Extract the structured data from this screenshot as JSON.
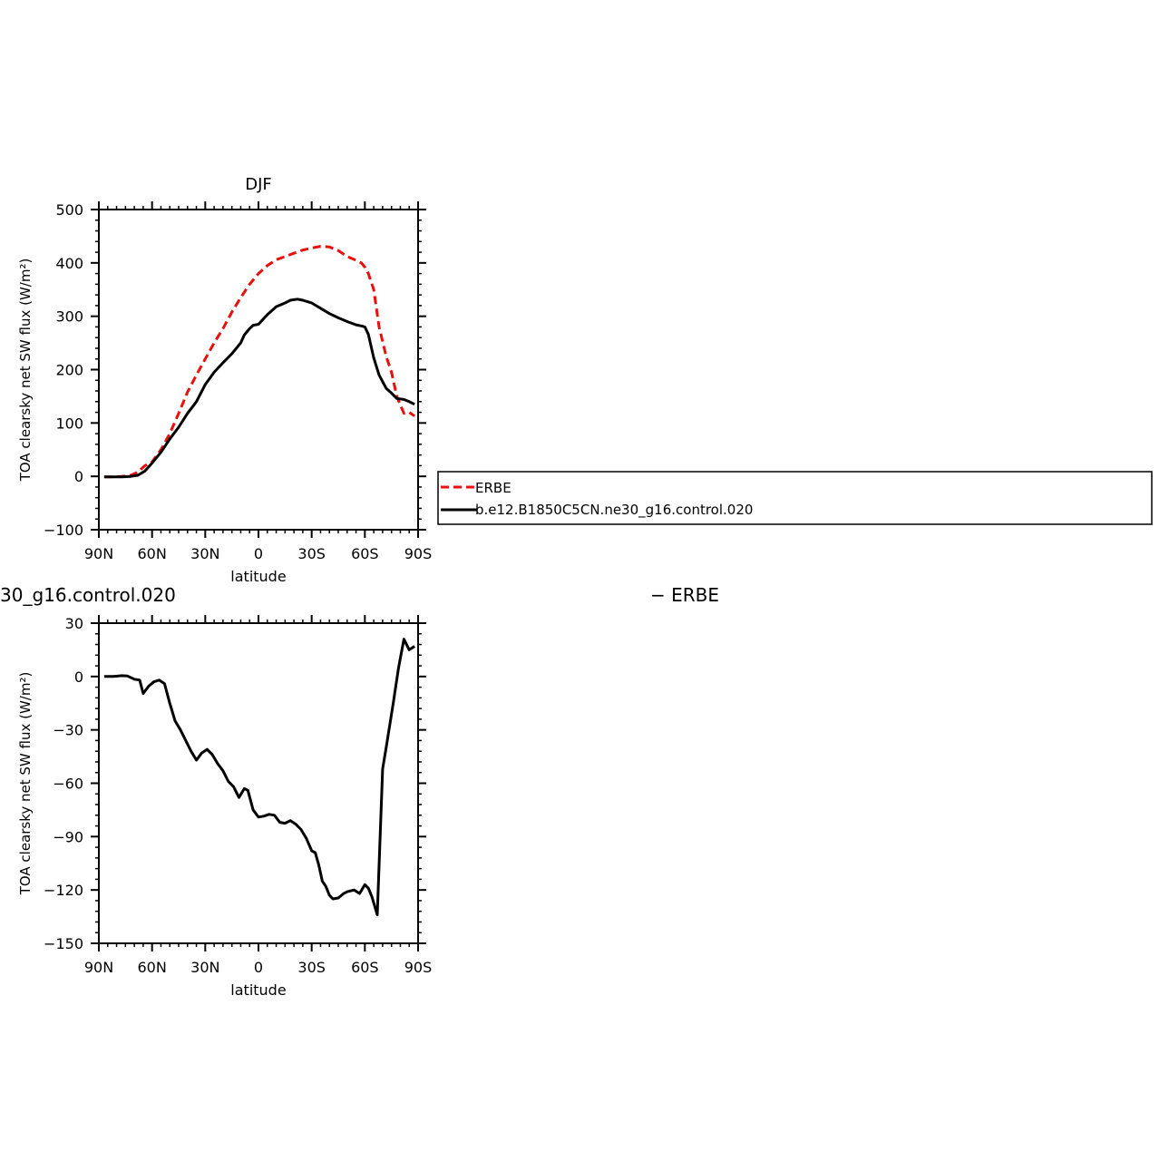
{
  "chart_data": [
    {
      "type": "line",
      "title": "DJF",
      "xlabel": "latitude",
      "ylabel": "TOA clearsky net SW flux (W/m²)",
      "xlim": [
        -90,
        90
      ],
      "ylim": [
        -100,
        500
      ],
      "x_ticks": [
        -90,
        -60,
        -30,
        0,
        30,
        60,
        90
      ],
      "x_tick_labels": [
        "90N",
        "60N",
        "30N",
        "0",
        "30S",
        "60S",
        "90S"
      ],
      "y_ticks": [
        -100,
        0,
        100,
        200,
        300,
        400,
        500
      ],
      "y_tick_labels": [
        "−100",
        "0",
        "100",
        "200",
        "300",
        "400",
        "500"
      ],
      "grid": false,
      "legend_placement": "right",
      "series": [
        {
          "name": "ERBE",
          "color": "#e8100a",
          "dash": "dashed",
          "x": [
            -87,
            -82,
            -77,
            -72,
            -68,
            -64,
            -60,
            -55,
            -50,
            -45,
            -40,
            -35,
            -30,
            -25,
            -20,
            -15,
            -10,
            -5,
            0,
            5,
            10,
            15,
            20,
            25,
            30,
            35,
            40,
            45,
            50,
            55,
            58,
            60,
            62,
            65,
            68,
            72,
            75,
            78,
            82,
            85,
            88
          ],
          "y": [
            -1,
            -1,
            0,
            2,
            8,
            20,
            27,
            50,
            80,
            118,
            158,
            190,
            220,
            250,
            277,
            308,
            335,
            360,
            380,
            395,
            406,
            412,
            418,
            424,
            428,
            431,
            430,
            423,
            412,
            405,
            400,
            392,
            380,
            350,
            280,
            225,
            195,
            150,
            118,
            120,
            113
          ]
        },
        {
          "name": "b.e12.B1850C5CN.ne30_g16.control.020",
          "color": "#000000",
          "dash": "solid",
          "x": [
            -87,
            -82,
            -77,
            -72,
            -68,
            -64,
            -60,
            -55,
            -50,
            -45,
            -40,
            -35,
            -30,
            -25,
            -20,
            -15,
            -10,
            -8,
            -5,
            -3,
            0,
            5,
            10,
            15,
            18,
            22,
            25,
            28,
            30,
            33,
            35,
            40,
            45,
            50,
            55,
            58,
            60,
            62,
            65,
            68,
            72,
            75,
            78,
            82,
            85,
            88
          ],
          "y": [
            -1,
            -1,
            -1,
            0,
            2,
            10,
            25,
            45,
            70,
            92,
            118,
            140,
            172,
            195,
            213,
            230,
            250,
            265,
            277,
            283,
            285,
            303,
            318,
            325,
            330,
            332,
            330,
            327,
            325,
            319,
            315,
            305,
            297,
            290,
            284,
            282,
            280,
            266,
            222,
            190,
            165,
            156,
            146,
            144,
            140,
            135
          ]
        }
      ]
    },
    {
      "type": "line",
      "title_left": "30_g16.control.020",
      "title_right": "− ERBE",
      "xlabel": "latitude",
      "ylabel": "TOA clearsky net SW flux (W/m²)",
      "xlim": [
        -90,
        90
      ],
      "ylim": [
        -150,
        30
      ],
      "x_ticks": [
        -90,
        -60,
        -30,
        0,
        30,
        60,
        90
      ],
      "x_tick_labels": [
        "90N",
        "60N",
        "30N",
        "0",
        "30S",
        "60S",
        "90S"
      ],
      "y_ticks": [
        -150,
        -120,
        -90,
        -60,
        -30,
        0,
        30
      ],
      "y_tick_labels": [
        "−150",
        "−120",
        "−90",
        "−60",
        "−30",
        "0",
        "30"
      ],
      "grid": false,
      "series": [
        {
          "color": "#000000",
          "dash": "solid",
          "x": [
            -87,
            -82,
            -77,
            -74,
            -70,
            -67,
            -65,
            -62,
            -59,
            -56,
            -53,
            -50,
            -47,
            -44,
            -41,
            -38,
            -35,
            -32,
            -29,
            -26,
            -23,
            -20,
            -17,
            -14,
            -11,
            -8,
            -6,
            -3,
            0,
            3,
            6,
            9,
            12,
            15,
            18,
            21,
            24,
            27,
            30,
            32,
            34,
            36,
            38,
            40,
            42,
            45,
            48,
            50,
            54,
            57,
            60,
            62,
            64,
            67,
            70,
            72,
            76,
            79,
            82,
            85,
            88
          ],
          "y": [
            0,
            0,
            0.5,
            0.3,
            -1.5,
            -2,
            -9.5,
            -5.5,
            -3,
            -2,
            -4,
            -15,
            -25,
            -30,
            -36,
            -42,
            -47,
            -43,
            -41,
            -44,
            -49,
            -53,
            -59,
            -62,
            -68,
            -63,
            -64,
            -75,
            -79,
            -78.5,
            -77.5,
            -78,
            -82,
            -82.5,
            -81,
            -83,
            -86,
            -91,
            -98,
            -99,
            -106,
            -115,
            -118,
            -123,
            -125,
            -124.5,
            -122,
            -121,
            -120,
            -122,
            -117,
            -119,
            -124,
            -134,
            -52,
            -40,
            -15,
            5,
            21,
            15,
            17
          ]
        }
      ]
    }
  ],
  "legend": {
    "items": [
      {
        "label": "ERBE",
        "color": "#e8100a",
        "dash": "dashed"
      },
      {
        "label": "b.e12.B1850C5CN.ne30_g16.control.020",
        "color": "#000000",
        "dash": "solid"
      }
    ]
  }
}
